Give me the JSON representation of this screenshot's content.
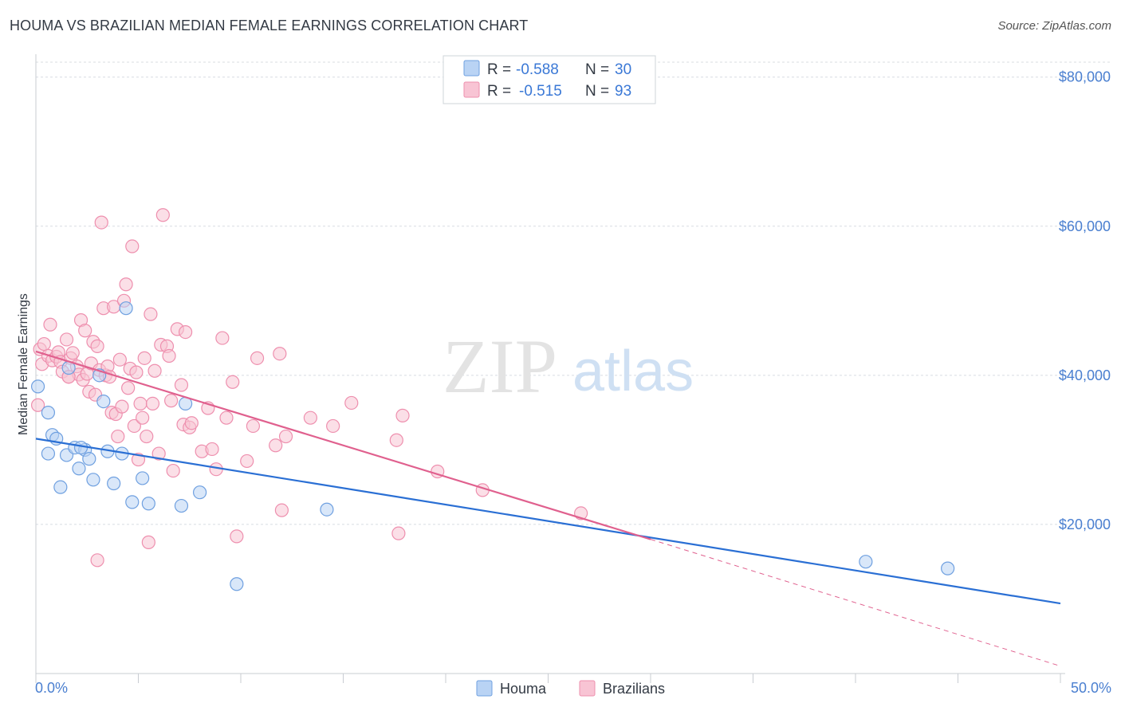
{
  "header": {
    "title": "HOUMA VS BRAZILIAN MEDIAN FEMALE EARNINGS CORRELATION CHART",
    "source": "Source: ZipAtlas.com"
  },
  "watermark": {
    "zip": "ZIP",
    "atlas": "atlas"
  },
  "legend": {
    "rows": [
      {
        "r_label": "R = ",
        "r_value": "-0.588",
        "n_label": "N = ",
        "n_value": "30"
      },
      {
        "r_label": "R = ",
        "r_value": "-0.515",
        "n_label": "N = ",
        "n_value": "93"
      }
    ]
  },
  "colors": {
    "houma_fill": "#b9d3f4",
    "houma_stroke": "#6fa0e0",
    "houma_line": "#2a6fd4",
    "braz_fill": "#f8c4d4",
    "braz_stroke": "#ee8fae",
    "braz_line": "#e0608e",
    "grid": "#d8dce2",
    "tick_text": "#4a7fd0"
  },
  "chart_data": {
    "type": "scatter",
    "title": "HOUMA VS BRAZILIAN MEDIAN FEMALE EARNINGS CORRELATION CHART",
    "xlabel": "",
    "ylabel": "Median Female Earnings",
    "xlim": [
      0,
      50
    ],
    "ylim": [
      0,
      82000
    ],
    "x_tick_labels": [
      "0.0%",
      "50.0%"
    ],
    "y_ticks": [
      20000,
      40000,
      60000,
      80000
    ],
    "y_tick_labels": [
      "$20,000",
      "$40,000",
      "$60,000",
      "$80,000"
    ],
    "grid": true,
    "legend_placement": "top-center",
    "series": [
      {
        "name": "Houma",
        "r": -0.588,
        "n": 30,
        "trend": {
          "x": [
            0,
            50
          ],
          "y": [
            31500,
            9400
          ]
        },
        "points": [
          [
            0.1,
            38500
          ],
          [
            0.6,
            29500
          ],
          [
            0.6,
            35000
          ],
          [
            0.8,
            32000
          ],
          [
            1.0,
            31500
          ],
          [
            1.2,
            25000
          ],
          [
            1.5,
            29300
          ],
          [
            1.6,
            41000
          ],
          [
            1.9,
            30300
          ],
          [
            2.1,
            27500
          ],
          [
            2.4,
            30000
          ],
          [
            2.6,
            28800
          ],
          [
            2.8,
            26000
          ],
          [
            3.1,
            40000
          ],
          [
            3.3,
            36500
          ],
          [
            3.5,
            29800
          ],
          [
            3.8,
            25500
          ],
          [
            4.2,
            29500
          ],
          [
            4.4,
            49000
          ],
          [
            4.7,
            23000
          ],
          [
            5.2,
            26200
          ],
          [
            5.5,
            22800
          ],
          [
            7.1,
            22500
          ],
          [
            7.3,
            36200
          ],
          [
            8.0,
            24300
          ],
          [
            9.8,
            12000
          ],
          [
            14.2,
            22000
          ],
          [
            40.5,
            15000
          ],
          [
            44.5,
            14100
          ],
          [
            2.2,
            30300
          ]
        ]
      },
      {
        "name": "Brazilians",
        "r": -0.515,
        "n": 93,
        "trend": {
          "x": [
            0,
            30
          ],
          "y": [
            43200,
            18000
          ]
        },
        "trend_dashed": {
          "x": [
            30,
            50
          ],
          "y": [
            18000,
            1000
          ]
        },
        "points": [
          [
            0.1,
            36000
          ],
          [
            0.2,
            43500
          ],
          [
            0.3,
            41500
          ],
          [
            0.4,
            44200
          ],
          [
            0.6,
            42600
          ],
          [
            0.7,
            46800
          ],
          [
            0.8,
            42000
          ],
          [
            1.0,
            42500
          ],
          [
            1.1,
            43100
          ],
          [
            1.2,
            41800
          ],
          [
            1.3,
            40500
          ],
          [
            1.5,
            44800
          ],
          [
            1.6,
            39800
          ],
          [
            1.7,
            42300
          ],
          [
            1.8,
            43000
          ],
          [
            2.0,
            41200
          ],
          [
            2.1,
            40100
          ],
          [
            2.2,
            47400
          ],
          [
            2.3,
            39400
          ],
          [
            2.4,
            46000
          ],
          [
            2.5,
            40200
          ],
          [
            2.6,
            37800
          ],
          [
            2.7,
            41600
          ],
          [
            2.8,
            44500
          ],
          [
            2.9,
            37400
          ],
          [
            3.0,
            43900
          ],
          [
            3.1,
            40700
          ],
          [
            3.2,
            60500
          ],
          [
            3.3,
            49000
          ],
          [
            3.4,
            40000
          ],
          [
            3.5,
            41200
          ],
          [
            3.6,
            39800
          ],
          [
            3.7,
            35000
          ],
          [
            3.8,
            49200
          ],
          [
            3.9,
            34800
          ],
          [
            4.0,
            31800
          ],
          [
            4.1,
            42100
          ],
          [
            4.2,
            35800
          ],
          [
            4.3,
            50000
          ],
          [
            4.4,
            52200
          ],
          [
            4.5,
            38300
          ],
          [
            4.6,
            40900
          ],
          [
            4.7,
            57300
          ],
          [
            4.8,
            33200
          ],
          [
            4.9,
            40400
          ],
          [
            5.0,
            28700
          ],
          [
            5.1,
            36200
          ],
          [
            5.2,
            34300
          ],
          [
            5.3,
            42300
          ],
          [
            5.4,
            31800
          ],
          [
            5.5,
            17600
          ],
          [
            5.6,
            48200
          ],
          [
            5.7,
            36200
          ],
          [
            5.8,
            40600
          ],
          [
            6.0,
            29500
          ],
          [
            6.1,
            44100
          ],
          [
            6.2,
            61500
          ],
          [
            6.4,
            43900
          ],
          [
            6.5,
            42600
          ],
          [
            6.6,
            36600
          ],
          [
            6.7,
            27200
          ],
          [
            6.9,
            46200
          ],
          [
            7.1,
            38700
          ],
          [
            7.2,
            33400
          ],
          [
            7.3,
            45800
          ],
          [
            7.5,
            33000
          ],
          [
            7.6,
            33600
          ],
          [
            8.1,
            29800
          ],
          [
            8.4,
            35600
          ],
          [
            8.6,
            30100
          ],
          [
            8.8,
            27400
          ],
          [
            9.1,
            45000
          ],
          [
            9.3,
            34300
          ],
          [
            9.6,
            39100
          ],
          [
            9.8,
            18400
          ],
          [
            10.3,
            28500
          ],
          [
            10.6,
            33200
          ],
          [
            10.8,
            42300
          ],
          [
            11.7,
            30600
          ],
          [
            11.9,
            42900
          ],
          [
            12.0,
            21900
          ],
          [
            12.2,
            31800
          ],
          [
            13.4,
            34300
          ],
          [
            14.5,
            33200
          ],
          [
            15.4,
            36300
          ],
          [
            17.6,
            31300
          ],
          [
            17.7,
            18800
          ],
          [
            17.9,
            34600
          ],
          [
            19.6,
            27100
          ],
          [
            21.8,
            24600
          ],
          [
            26.6,
            21500
          ],
          [
            3.0,
            15200
          ],
          [
            1.6,
            39800
          ]
        ]
      }
    ]
  }
}
